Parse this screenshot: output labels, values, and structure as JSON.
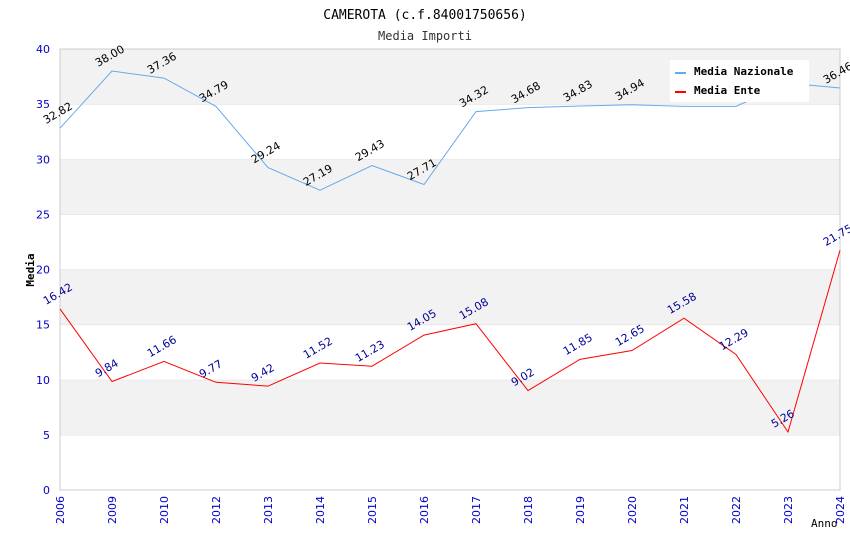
{
  "chart_data": {
    "type": "line",
    "title": "CAMEROTA (c.f.84001750656)",
    "subtitle": "Media Importi",
    "xlabel": "Anno",
    "ylabel": "Media",
    "ylim": [
      0,
      40
    ],
    "yticks": [
      "0",
      "5",
      "10",
      "15",
      "20",
      "25",
      "30",
      "35",
      "40"
    ],
    "categories": [
      "2006",
      "2009",
      "2010",
      "2012",
      "2013",
      "2014",
      "2015",
      "2016",
      "2017",
      "2018",
      "2019",
      "2020",
      "2021",
      "2022",
      "2023",
      "2024"
    ],
    "legend_position": "top-right",
    "series": [
      {
        "name": "Media Nazionale",
        "color": "#66aaee",
        "label_color": "#000000",
        "values": [
          32.82,
          38.0,
          37.36,
          34.79,
          29.24,
          27.19,
          29.43,
          27.71,
          34.32,
          34.68,
          34.83,
          34.94,
          34.8,
          34.8,
          36.9,
          36.46
        ],
        "labels": [
          "32.82",
          "38.00",
          "37.36",
          "34.79",
          "29.24",
          "27.19",
          "29.43",
          "27.71",
          "34.32",
          "34.68",
          "34.83",
          "34.94",
          "",
          "",
          "",
          "36.46"
        ]
      },
      {
        "name": "Media Ente",
        "color": "#ff0000",
        "label_color": "#000099",
        "values": [
          16.42,
          9.84,
          11.66,
          9.77,
          9.42,
          11.52,
          11.23,
          14.05,
          15.08,
          9.02,
          11.85,
          12.65,
          15.58,
          12.29,
          5.26,
          21.75
        ],
        "labels": [
          "16.42",
          "9.84",
          "11.66",
          "9.77",
          "9.42",
          "11.52",
          "11.23",
          "14.05",
          "15.08",
          "9.02",
          "11.85",
          "12.65",
          "15.58",
          "12.29",
          "5.26",
          "21.75"
        ]
      }
    ]
  }
}
